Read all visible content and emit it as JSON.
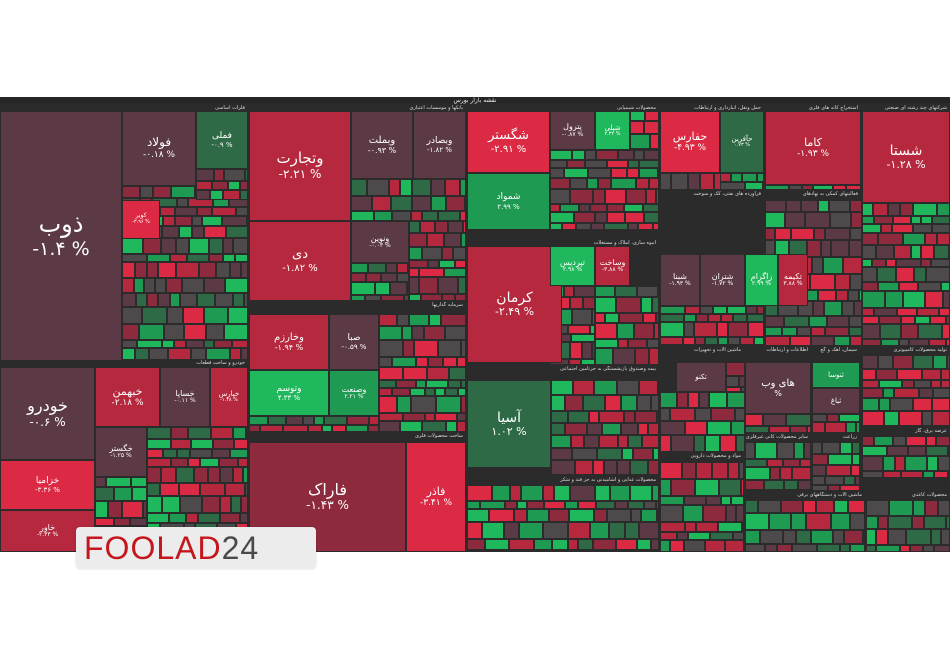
{
  "map_title": "نقشه بازار بورس",
  "colors": {
    "deep_red": "#8e2a3d",
    "red": "#b5283d",
    "bright_red": "#dd2a44",
    "dark": "#5b3a45",
    "neutral": "#4e4a4c",
    "green": "#1f9a52",
    "bright_green": "#20b85c",
    "dark_green": "#2f6a47"
  },
  "logo": {
    "brand": "FOOLAD",
    "number": "24"
  },
  "chart_data": {
    "type": "treemap",
    "title": "نقشه بازار بورس",
    "sectors": [
      {
        "name": "فلزات اساسی"
      },
      {
        "name": "بانکها و موسسات اعتباری"
      },
      {
        "name": "محصولات شیمیایی"
      },
      {
        "name": "حمل ونقل، انبارداری و ارتباطات"
      },
      {
        "name": "استخراج کانه های فلزی"
      },
      {
        "name": "شرکتهای چند رشته ای صنعتی"
      },
      {
        "name": "خودرو و ساخت قطعات"
      },
      {
        "name": "سرمایه گذاریها"
      },
      {
        "name": "انبوه سازی، املاک و مستغلات"
      },
      {
        "name": "ساخت محصولات فلزی"
      },
      {
        "name": "بیمه وصندوق بازنشستگی به جزتامین اجتماعی"
      },
      {
        "name": "محصولات غذایی و آشامیدنی به جز قند و شکر"
      },
      {
        "name": "فراورده های نفتی، کک و سوخت"
      },
      {
        "name": "ماشین آلات و تجهیزات"
      },
      {
        "name": "مواد و محصولات دارویی"
      },
      {
        "name": "اطلاعات و ارتباطات"
      },
      {
        "name": "سیمان، آهک و گچ"
      },
      {
        "name": "تولید محصولات کامپیوتری"
      },
      {
        "name": "سایر محصولات کانی غیرفلزی"
      },
      {
        "name": "ماشین آلات و دستگاههای برقی"
      },
      {
        "name": "عرضه برق، گاز"
      },
      {
        "name": "محصولات کاغذی"
      },
      {
        "name": "زراعت"
      },
      {
        "name": "فعالیتهای کمکی به نهادهای"
      },
      {
        "name": "رایانه و فعالیتهای"
      }
    ],
    "tiles": [
      {
        "name": "ذوب",
        "change": "-۱.۴ %"
      },
      {
        "name": "فولاد",
        "change": "-۰.۱۸ %"
      },
      {
        "name": "فملی",
        "change": "-۰.۹ %"
      },
      {
        "name": "کویر",
        "change": "-۳.۹۶ %"
      },
      {
        "name": "کاما",
        "change": "-۱.۹۳ %"
      },
      {
        "name": "وتجارت",
        "change": "-۲.۲۱ %"
      },
      {
        "name": "وبملت",
        "change": "-۰.۹۳ %"
      },
      {
        "name": "وبصادر",
        "change": "-۱.۸۲ %"
      },
      {
        "name": "دی",
        "change": "-۱.۸۲ %"
      },
      {
        "name": "ونوین",
        "change": "-۰.۰۳ %"
      },
      {
        "name": "شگستر",
        "change": "-۲.۹۱ %"
      },
      {
        "name": "پترول",
        "change": "-۰.۸۷ %"
      },
      {
        "name": "شپلی",
        "change": "۲.۳۲ %"
      },
      {
        "name": "شمواد",
        "change": "۲.۹۹ %"
      },
      {
        "name": "حفارس",
        "change": "-۴.۹۳ %"
      },
      {
        "name": "حآفرین",
        "change": "۰.۷۳ %"
      },
      {
        "name": "شستا",
        "change": "-۱.۲۸ %"
      },
      {
        "name": "خودرو",
        "change": "-۰.۶ %"
      },
      {
        "name": "خبهمن",
        "change": "-۲.۱۸ %"
      },
      {
        "name": "خساپا",
        "change": "-۰.۱۱ %"
      },
      {
        "name": "خپارس",
        "change": "-۱.۴۸ %"
      },
      {
        "name": "خزامیا",
        "change": "-۳.۳۶ %"
      },
      {
        "name": "خگستر",
        "change": "-۱.۲۵ %"
      },
      {
        "name": "خاور",
        "change": "-۲.۳۳ %"
      },
      {
        "name": "وخارزم",
        "change": "-۱.۹۴ %"
      },
      {
        "name": "صبا",
        "change": "-۰.۵۹ %"
      },
      {
        "name": "وتوسم",
        "change": "۴.۳۳ %"
      },
      {
        "name": "وصنعت",
        "change": "۲.۲۱ %"
      },
      {
        "name": "کرمان",
        "change": "-۲.۴۹ %"
      },
      {
        "name": "تپردیس",
        "change": "۲.۹۸ %"
      },
      {
        "name": "وساخت",
        "change": "-۳.۸۸ %"
      },
      {
        "name": "آسیا",
        "change": "۱.۰۲ %"
      },
      {
        "name": "فاراک",
        "change": "-۱.۴۳ %"
      },
      {
        "name": "فاذر",
        "change": "-۳.۴۱ %"
      },
      {
        "name": "شبنا",
        "change": "-۱.۹۳ %"
      },
      {
        "name": "شتران",
        "change": "-۱.۷۲ %"
      },
      {
        "name": "زاگرام",
        "change": "۲.۹۹ %"
      },
      {
        "name": "تکیمه",
        "change": "۳.۸۸ %"
      },
      {
        "name": "های وب",
        "change": "%"
      },
      {
        "name": "ثنوسا",
        "change": ""
      },
      {
        "name": "ثباغ",
        "change": ""
      },
      {
        "name": "تکنو",
        "change": ""
      }
    ]
  }
}
